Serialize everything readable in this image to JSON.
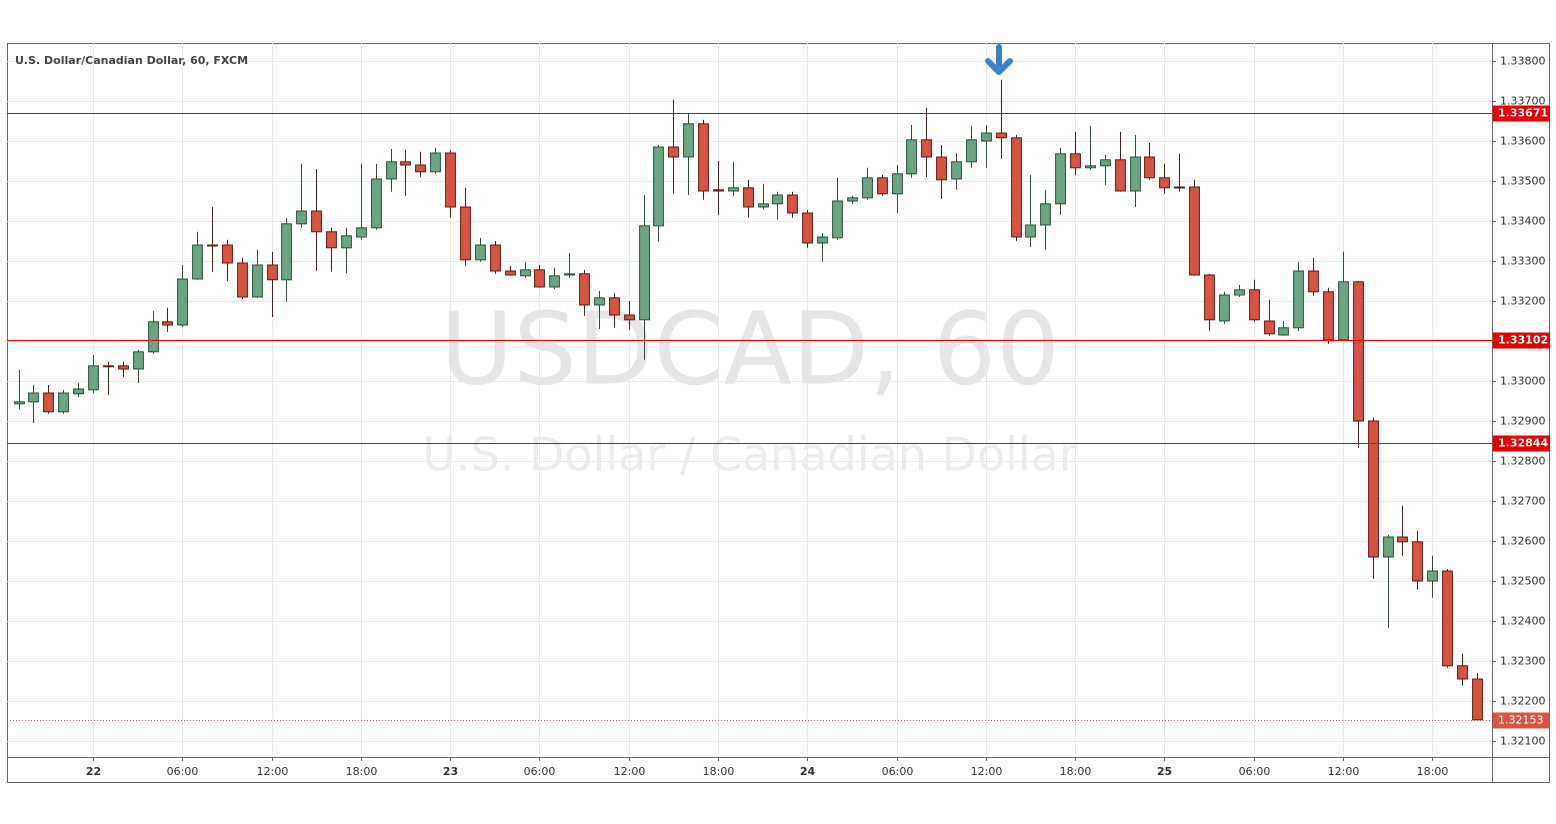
{
  "chart_data": {
    "type": "candlestick",
    "title": "U.S. Dollar/Canadian Dollar, 60, FXCM",
    "watermark": "USDCAD, 60",
    "watermark_subtitle": "U.S. Dollar / Canadian Dollar",
    "up_color": "#6ba583",
    "up_border": "#225437",
    "down_color": "#d75442",
    "down_border": "#5b1a13",
    "hline_color": "#e60000",
    "grid": true,
    "x": [
      -5,
      -4,
      -3,
      -2,
      -1,
      0,
      1,
      2,
      3,
      4,
      5,
      6,
      7,
      8,
      9,
      10,
      11,
      12,
      13,
      14,
      15,
      16,
      17,
      18,
      19,
      20,
      21,
      22,
      23,
      24,
      25,
      26,
      27,
      28,
      29,
      30,
      31,
      32,
      33,
      34,
      35,
      36,
      37,
      38,
      39,
      40,
      41,
      42,
      43,
      44,
      45,
      46,
      47,
      48,
      49,
      50,
      51,
      52,
      53,
      54,
      55,
      56,
      57,
      58,
      59,
      60,
      61,
      62,
      63,
      64,
      65,
      66,
      67,
      68,
      69,
      70,
      71,
      72,
      73,
      74,
      75,
      76,
      77,
      78,
      79,
      80,
      81,
      82,
      83,
      84,
      85,
      86,
      87,
      88,
      89,
      90,
      91,
      92,
      93
    ],
    "open": [
      1.32943,
      1.32948,
      1.3297,
      1.32923,
      1.32968,
      1.32978,
      1.33038,
      1.33038,
      1.3303,
      1.33073,
      1.33148,
      1.3314,
      1.33255,
      1.3334,
      1.3334,
      1.33295,
      1.3321,
      1.3329,
      1.33253,
      1.33393,
      1.33425,
      1.33373,
      1.33333,
      1.3336,
      1.33383,
      1.33505,
      1.33548,
      1.3354,
      1.33523,
      1.3357,
      1.33435,
      1.33303,
      1.3334,
      1.33275,
      1.33263,
      1.33278,
      1.33235,
      1.33265,
      1.33268,
      1.3319,
      1.33208,
      1.33165,
      1.33153,
      1.33388,
      1.33585,
      1.3356,
      1.33643,
      1.33478,
      1.33475,
      1.33483,
      1.33435,
      1.33443,
      1.33465,
      1.3342,
      1.33345,
      1.33358,
      1.3345,
      1.33458,
      1.33508,
      1.33468,
      1.33518,
      1.33603,
      1.3356,
      1.33505,
      1.33548,
      1.336,
      1.3362,
      1.33608,
      1.3336,
      1.3339,
      1.33443,
      1.33568,
      1.33533,
      1.33538,
      1.33553,
      1.33475,
      1.3356,
      1.33508,
      1.33485,
      1.33485,
      1.33265,
      1.3315,
      1.33215,
      1.33228,
      1.3315,
      1.33115,
      1.33133,
      1.33275,
      1.33223,
      1.33103,
      1.33248,
      1.329,
      1.3256,
      1.3261,
      1.32598,
      1.325,
      1.32525,
      1.32288,
      1.32255
    ],
    "high": [
      1.33028,
      1.3299,
      1.3299,
      1.32978,
      1.32995,
      1.33065,
      1.33048,
      1.33048,
      1.33078,
      1.33175,
      1.33183,
      1.3329,
      1.33373,
      1.33435,
      1.33353,
      1.33308,
      1.33328,
      1.33323,
      1.33408,
      1.33543,
      1.3353,
      1.33383,
      1.33383,
      1.33543,
      1.33543,
      1.3358,
      1.33578,
      1.33573,
      1.33583,
      1.33578,
      1.33483,
      1.33358,
      1.3335,
      1.33288,
      1.33298,
      1.3329,
      1.33283,
      1.3332,
      1.33278,
      1.33225,
      1.3322,
      1.332,
      1.33465,
      1.3359,
      1.33703,
      1.3367,
      1.33653,
      1.3355,
      1.33548,
      1.33503,
      1.33493,
      1.33473,
      1.33473,
      1.33428,
      1.3337,
      1.33508,
      1.33463,
      1.33533,
      1.33515,
      1.3354,
      1.3364,
      1.33683,
      1.3359,
      1.3357,
      1.33638,
      1.3364,
      1.33753,
      1.33615,
      1.33515,
      1.33478,
      1.33583,
      1.33623,
      1.33638,
      1.33565,
      1.33623,
      1.33615,
      1.33595,
      1.33543,
      1.33568,
      1.33503,
      1.33268,
      1.33223,
      1.3324,
      1.33253,
      1.33203,
      1.3315,
      1.33298,
      1.33308,
      1.33233,
      1.33323,
      1.3325,
      1.32908,
      1.32615,
      1.32688,
      1.32625,
      1.32563,
      1.3253,
      1.32318,
      1.3227
    ],
    "low": [
      1.32928,
      1.32895,
      1.32918,
      1.32918,
      1.3296,
      1.3297,
      1.32965,
      1.3301,
      1.32995,
      1.33068,
      1.33123,
      1.33135,
      1.33253,
      1.33273,
      1.3325,
      1.33205,
      1.33208,
      1.3316,
      1.33198,
      1.33383,
      1.33275,
      1.33273,
      1.3327,
      1.33353,
      1.33378,
      1.33473,
      1.33463,
      1.3351,
      1.33518,
      1.33408,
      1.33288,
      1.33298,
      1.33268,
      1.33263,
      1.33258,
      1.33233,
      1.3323,
      1.33258,
      1.33163,
      1.3313,
      1.33133,
      1.33128,
      1.33053,
      1.33348,
      1.33468,
      1.33465,
      1.33453,
      1.33415,
      1.33463,
      1.33408,
      1.33428,
      1.33403,
      1.33408,
      1.33333,
      1.33298,
      1.33353,
      1.33443,
      1.33453,
      1.33463,
      1.3342,
      1.33508,
      1.3351,
      1.33455,
      1.33478,
      1.33533,
      1.33533,
      1.33555,
      1.3335,
      1.33335,
      1.33328,
      1.33415,
      1.33515,
      1.33528,
      1.3349,
      1.33473,
      1.33435,
      1.33503,
      1.33468,
      1.33473,
      1.33263,
      1.33125,
      1.33143,
      1.3321,
      1.33148,
      1.33113,
      1.33113,
      1.33125,
      1.33213,
      1.33093,
      1.331,
      1.32833,
      1.32505,
      1.32383,
      1.32563,
      1.32478,
      1.32458,
      1.32283,
      1.32238,
      1.3215
    ],
    "close": [
      1.32948,
      1.3297,
      1.32923,
      1.3297,
      1.3298,
      1.33038,
      1.33037,
      1.3303,
      1.33073,
      1.33148,
      1.3314,
      1.33255,
      1.3334,
      1.33338,
      1.33295,
      1.3321,
      1.3329,
      1.33253,
      1.33393,
      1.33425,
      1.33373,
      1.33333,
      1.33363,
      1.33383,
      1.33505,
      1.33548,
      1.3354,
      1.33523,
      1.3357,
      1.33435,
      1.33303,
      1.3334,
      1.33275,
      1.33265,
      1.33278,
      1.33235,
      1.33263,
      1.33268,
      1.3319,
      1.33208,
      1.33165,
      1.33153,
      1.33388,
      1.33585,
      1.3356,
      1.33643,
      1.33475,
      1.33475,
      1.33483,
      1.33435,
      1.33443,
      1.33465,
      1.3342,
      1.33345,
      1.3336,
      1.3345,
      1.33458,
      1.33508,
      1.33468,
      1.33518,
      1.33603,
      1.3356,
      1.33503,
      1.33548,
      1.33603,
      1.3362,
      1.33608,
      1.3336,
      1.3339,
      1.33443,
      1.33568,
      1.33533,
      1.33538,
      1.33553,
      1.33475,
      1.3356,
      1.33508,
      1.33483,
      1.33483,
      1.33265,
      1.33153,
      1.33215,
      1.33228,
      1.33153,
      1.33118,
      1.33133,
      1.33275,
      1.33223,
      1.33103,
      1.33248,
      1.329,
      1.3256,
      1.3261,
      1.32598,
      1.325,
      1.32525,
      1.32288,
      1.32255,
      1.32153
    ],
    "hlines": [
      1.33671,
      1.33102,
      1.32844
    ],
    "last_price": 1.32153,
    "xlim": [
      -5.78,
      94.02
    ],
    "xticks": [
      {
        "value": 0,
        "label": "22"
      },
      {
        "value": 6,
        "label": "06:00"
      },
      {
        "value": 12,
        "label": "12:00"
      },
      {
        "value": 18,
        "label": "18:00"
      },
      {
        "value": 24,
        "label": "23"
      },
      {
        "value": 30,
        "label": "06:00"
      },
      {
        "value": 36,
        "label": "12:00"
      },
      {
        "value": 42,
        "label": "18:00"
      },
      {
        "value": 48,
        "label": "24"
      },
      {
        "value": 54,
        "label": "06:00"
      },
      {
        "value": 60,
        "label": "12:00"
      },
      {
        "value": 66,
        "label": "18:00"
      },
      {
        "value": 72,
        "label": "25"
      },
      {
        "value": 78,
        "label": "06:00"
      },
      {
        "value": 84,
        "label": "12:00"
      },
      {
        "value": 90,
        "label": "18:00"
      }
    ],
    "ylim": [
      1.3206,
      1.33845
    ],
    "yticks": [
      {
        "value": 1.321,
        "label": "1.32100"
      },
      {
        "value": 1.322,
        "label": "1.32200"
      },
      {
        "value": 1.323,
        "label": "1.32300"
      },
      {
        "value": 1.324,
        "label": "1.32400"
      },
      {
        "value": 1.325,
        "label": "1.32500"
      },
      {
        "value": 1.326,
        "label": "1.32600"
      },
      {
        "value": 1.327,
        "label": "1.32700"
      },
      {
        "value": 1.328,
        "label": "1.32800"
      },
      {
        "value": 1.329,
        "label": "1.32900"
      },
      {
        "value": 1.33,
        "label": "1.33000"
      },
      {
        "value": 1.331,
        "label": "1.33100"
      },
      {
        "value": 1.332,
        "label": "1.33200"
      },
      {
        "value": 1.333,
        "label": "1.33300"
      },
      {
        "value": 1.334,
        "label": "1.33400"
      },
      {
        "value": 1.335,
        "label": "1.33500"
      },
      {
        "value": 1.336,
        "label": "1.33600"
      },
      {
        "value": 1.337,
        "label": "1.33700"
      },
      {
        "value": 1.338,
        "label": "1.33800"
      }
    ]
  }
}
